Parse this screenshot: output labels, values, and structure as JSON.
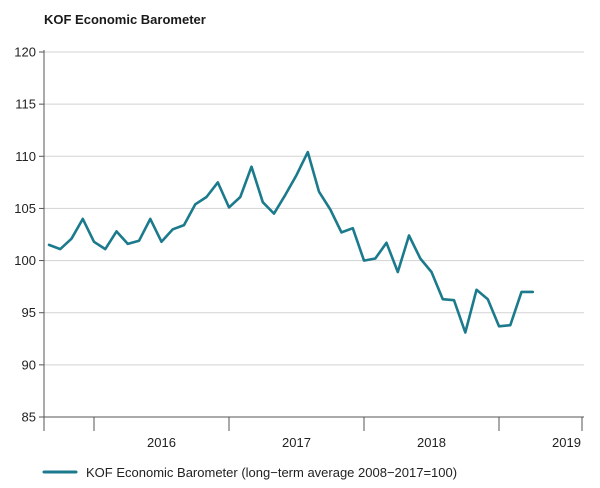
{
  "chart_data": {
    "type": "line",
    "title": "KOF Economic Barometer",
    "xlabel": "",
    "ylabel": "",
    "ylim": [
      85,
      120
    ],
    "yticks": [
      85,
      90,
      95,
      100,
      105,
      110,
      115,
      120
    ],
    "year_labels": [
      "2016",
      "2017",
      "2018",
      "2019"
    ],
    "grid": true,
    "legend_position": "bottom-left",
    "series": [
      {
        "name": "KOF Economic Barometer (long−term average 2008−2017=100)",
        "color": "#1b7a8c",
        "start": "2015-09",
        "values": [
          101.5,
          101.1,
          102.1,
          104.0,
          101.8,
          101.1,
          102.8,
          101.6,
          101.9,
          104.0,
          101.8,
          103.0,
          103.4,
          105.4,
          106.1,
          107.5,
          105.1,
          106.1,
          109.0,
          105.6,
          104.5,
          106.3,
          108.2,
          110.4,
          106.6,
          104.9,
          102.7,
          103.1,
          100.0,
          100.2,
          101.7,
          98.9,
          102.4,
          100.2,
          98.9,
          96.3,
          96.2,
          93.1,
          97.2,
          96.3,
          93.7,
          93.8,
          97.0,
          97.0
        ]
      }
    ]
  }
}
